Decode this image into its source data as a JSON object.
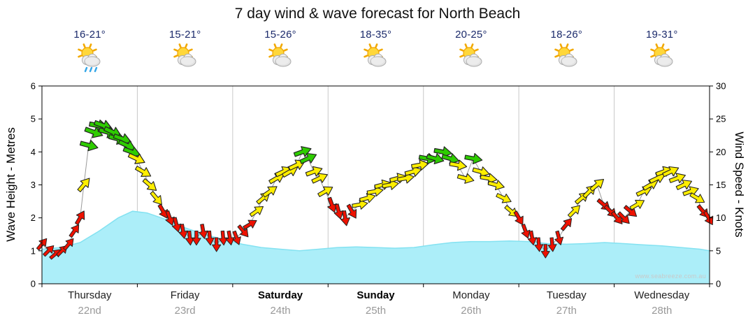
{
  "title": "7 day wind & wave forecast for North Beach",
  "watermark": "www.seabreeze.com.au",
  "axes": {
    "left_title": "Wave Height - Metres",
    "right_title": "Wind Speed - Knots",
    "left_ticks": [
      0,
      1,
      2,
      3,
      4,
      5,
      6
    ],
    "right_ticks": [
      0,
      5,
      10,
      15,
      20,
      25,
      30
    ]
  },
  "days": [
    {
      "name": "Thursday",
      "date": "22nd",
      "temp": "16-21°",
      "icon": "sun-cloud-rain",
      "bold": false
    },
    {
      "name": "Friday",
      "date": "23rd",
      "temp": "15-21°",
      "icon": "sun-cloud",
      "bold": false
    },
    {
      "name": "Saturday",
      "date": "24th",
      "temp": "15-26°",
      "icon": "sun-cloud",
      "bold": true
    },
    {
      "name": "Sunday",
      "date": "25th",
      "temp": "18-35°",
      "icon": "sun-cloud",
      "bold": true
    },
    {
      "name": "Monday",
      "date": "26th",
      "temp": "20-25°",
      "icon": "sun-cloud",
      "bold": false
    },
    {
      "name": "Tuesday",
      "date": "27th",
      "temp": "18-26°",
      "icon": "sun-cloud",
      "bold": false
    },
    {
      "name": "Wednesday",
      "date": "28th",
      "temp": "19-31°",
      "icon": "sun-cloud",
      "bold": false
    }
  ],
  "colors": {
    "wave_fill": "#aceef9",
    "wave_line": "#84e2f1",
    "wind_red": "#ee1100",
    "wind_yellow": "#ffee00",
    "wind_green": "#2ecc00",
    "arrow_outline": "#222222",
    "temp_text": "#1b2a6b",
    "grid": "#c8c8c8"
  },
  "chart_data": [
    {
      "type": "area",
      "name": "wave_height",
      "title": "Wave Height",
      "ylabel": "Wave Height - Metres",
      "ylim": [
        0,
        6
      ],
      "x_unit": "days, 0 = start of Thursday 22nd, 7 = end of Wednesday 28th",
      "points": [
        [
          0,
          1.05
        ],
        [
          0.2,
          1.1
        ],
        [
          0.4,
          1.25
        ],
        [
          0.6,
          1.6
        ],
        [
          0.8,
          2.0
        ],
        [
          0.95,
          2.2
        ],
        [
          1.1,
          2.15
        ],
        [
          1.3,
          1.95
        ],
        [
          1.5,
          1.7
        ],
        [
          1.7,
          1.5
        ],
        [
          1.9,
          1.35
        ],
        [
          2.1,
          1.2
        ],
        [
          2.3,
          1.1
        ],
        [
          2.5,
          1.05
        ],
        [
          2.7,
          1.0
        ],
        [
          2.9,
          1.05
        ],
        [
          3.1,
          1.1
        ],
        [
          3.3,
          1.12
        ],
        [
          3.5,
          1.1
        ],
        [
          3.7,
          1.08
        ],
        [
          3.9,
          1.1
        ],
        [
          4.1,
          1.18
        ],
        [
          4.3,
          1.25
        ],
        [
          4.5,
          1.28
        ],
        [
          4.7,
          1.28
        ],
        [
          4.9,
          1.3
        ],
        [
          5.1,
          1.28
        ],
        [
          5.3,
          1.22
        ],
        [
          5.5,
          1.2
        ],
        [
          5.7,
          1.22
        ],
        [
          5.9,
          1.25
        ],
        [
          6.1,
          1.22
        ],
        [
          6.3,
          1.18
        ],
        [
          6.5,
          1.15
        ],
        [
          6.7,
          1.1
        ],
        [
          6.9,
          1.05
        ],
        [
          7,
          1.0
        ]
      ]
    },
    {
      "type": "line",
      "name": "wind_speed",
      "title": "Wind Speed",
      "ylabel": "Wind Speed - Knots",
      "ylim": [
        0,
        30
      ],
      "marker": "direction-arrow",
      "point_format": "[t_days, knots, arrow_angle_deg_clockwise_from_east, color_code]",
      "color_key": {
        "r": "red = light wind",
        "y": "yellow = moderate wind",
        "g": "green = fresh wind"
      },
      "points": [
        [
          0.0,
          6,
          -50,
          "r"
        ],
        [
          0.07,
          5,
          -45,
          "r"
        ],
        [
          0.14,
          4.5,
          -40,
          "r"
        ],
        [
          0.21,
          5,
          -45,
          "r"
        ],
        [
          0.28,
          6,
          -50,
          "r"
        ],
        [
          0.34,
          8,
          -55,
          "r"
        ],
        [
          0.4,
          10,
          -60,
          "r"
        ],
        [
          0.44,
          15,
          -50,
          "y"
        ],
        [
          0.49,
          21,
          15,
          "g"
        ],
        [
          0.54,
          23,
          20,
          "g"
        ],
        [
          0.59,
          24,
          10,
          "g"
        ],
        [
          0.64,
          24,
          20,
          "g"
        ],
        [
          0.69,
          23,
          15,
          "g"
        ],
        [
          0.74,
          23,
          25,
          "g"
        ],
        [
          0.79,
          22,
          15,
          "g"
        ],
        [
          0.84,
          22,
          20,
          "g"
        ],
        [
          0.89,
          21,
          25,
          "g"
        ],
        [
          0.94,
          20,
          20,
          "g"
        ],
        [
          0.99,
          19,
          25,
          "y"
        ],
        [
          1.06,
          17,
          30,
          "y"
        ],
        [
          1.13,
          15,
          40,
          "y"
        ],
        [
          1.2,
          13,
          50,
          "y"
        ],
        [
          1.27,
          11,
          60,
          "r"
        ],
        [
          1.34,
          10,
          70,
          "r"
        ],
        [
          1.41,
          9,
          75,
          "r"
        ],
        [
          1.48,
          8,
          80,
          "r"
        ],
        [
          1.55,
          7,
          85,
          "r"
        ],
        [
          1.62,
          7,
          90,
          "r"
        ],
        [
          1.69,
          8,
          80,
          "r"
        ],
        [
          1.76,
          7,
          85,
          "r"
        ],
        [
          1.83,
          6,
          90,
          "r"
        ],
        [
          1.9,
          7,
          85,
          "r"
        ],
        [
          1.97,
          7,
          80,
          "r"
        ],
        [
          2.04,
          7,
          70,
          "r"
        ],
        [
          2.11,
          8,
          50,
          "r"
        ],
        [
          2.18,
          9,
          -30,
          "r"
        ],
        [
          2.25,
          11,
          -35,
          "y"
        ],
        [
          2.32,
          13,
          -40,
          "y"
        ],
        [
          2.39,
          14,
          -35,
          "y"
        ],
        [
          2.46,
          16,
          -30,
          "y"
        ],
        [
          2.53,
          17,
          -25,
          "y"
        ],
        [
          2.6,
          17,
          -30,
          "y"
        ],
        [
          2.67,
          18,
          -25,
          "y"
        ],
        [
          2.73,
          20,
          -20,
          "g"
        ],
        [
          2.79,
          19,
          -25,
          "g"
        ],
        [
          2.85,
          17,
          -20,
          "y"
        ],
        [
          2.91,
          16,
          -25,
          "y"
        ],
        [
          2.97,
          14,
          -30,
          "y"
        ],
        [
          3.04,
          12,
          70,
          "r"
        ],
        [
          3.11,
          11,
          75,
          "r"
        ],
        [
          3.18,
          10,
          80,
          "r"
        ],
        [
          3.25,
          11,
          60,
          "r"
        ],
        [
          3.33,
          12,
          -10,
          "y"
        ],
        [
          3.41,
          13,
          -15,
          "y"
        ],
        [
          3.49,
          14,
          -10,
          "y"
        ],
        [
          3.57,
          15,
          -15,
          "y"
        ],
        [
          3.65,
          15,
          -10,
          "y"
        ],
        [
          3.73,
          16,
          -15,
          "y"
        ],
        [
          3.81,
          16,
          -10,
          "y"
        ],
        [
          3.89,
          17,
          -15,
          "y"
        ],
        [
          3.96,
          18,
          -10,
          "y"
        ],
        [
          4.04,
          19,
          10,
          "g"
        ],
        [
          4.12,
          19,
          15,
          "g"
        ],
        [
          4.2,
          20,
          10,
          "g"
        ],
        [
          4.28,
          19,
          15,
          "g"
        ],
        [
          4.36,
          18,
          10,
          "y"
        ],
        [
          4.44,
          16,
          15,
          "y"
        ],
        [
          4.52,
          19,
          10,
          "g"
        ],
        [
          4.6,
          17,
          15,
          "y"
        ],
        [
          4.68,
          16,
          10,
          "y"
        ],
        [
          4.76,
          15,
          15,
          "y"
        ],
        [
          4.84,
          13,
          25,
          "y"
        ],
        [
          4.92,
          11,
          40,
          "y"
        ],
        [
          5.0,
          10,
          60,
          "r"
        ],
        [
          5.07,
          8,
          70,
          "r"
        ],
        [
          5.14,
          7,
          80,
          "r"
        ],
        [
          5.21,
          6,
          85,
          "r"
        ],
        [
          5.28,
          5,
          90,
          "r"
        ],
        [
          5.35,
          6,
          85,
          "r"
        ],
        [
          5.42,
          7,
          75,
          "r"
        ],
        [
          5.5,
          9,
          -50,
          "r"
        ],
        [
          5.58,
          11,
          -45,
          "y"
        ],
        [
          5.66,
          13,
          -40,
          "y"
        ],
        [
          5.74,
          14,
          -45,
          "y"
        ],
        [
          5.82,
          15,
          -40,
          "y"
        ],
        [
          5.89,
          12,
          40,
          "r"
        ],
        [
          5.96,
          11,
          45,
          "r"
        ],
        [
          6.03,
          10,
          50,
          "r"
        ],
        [
          6.1,
          10,
          45,
          "r"
        ],
        [
          6.17,
          11,
          40,
          "r"
        ],
        [
          6.24,
          12,
          -30,
          "y"
        ],
        [
          6.31,
          14,
          -25,
          "y"
        ],
        [
          6.38,
          15,
          -30,
          "y"
        ],
        [
          6.45,
          16,
          -25,
          "y"
        ],
        [
          6.52,
          17,
          -20,
          "y"
        ],
        [
          6.59,
          17,
          -25,
          "y"
        ],
        [
          6.66,
          16,
          -20,
          "y"
        ],
        [
          6.73,
          15,
          -25,
          "y"
        ],
        [
          6.8,
          14,
          -20,
          "y"
        ],
        [
          6.87,
          13,
          30,
          "y"
        ],
        [
          6.93,
          11,
          50,
          "r"
        ],
        [
          6.99,
          10,
          60,
          "r"
        ]
      ]
    }
  ]
}
